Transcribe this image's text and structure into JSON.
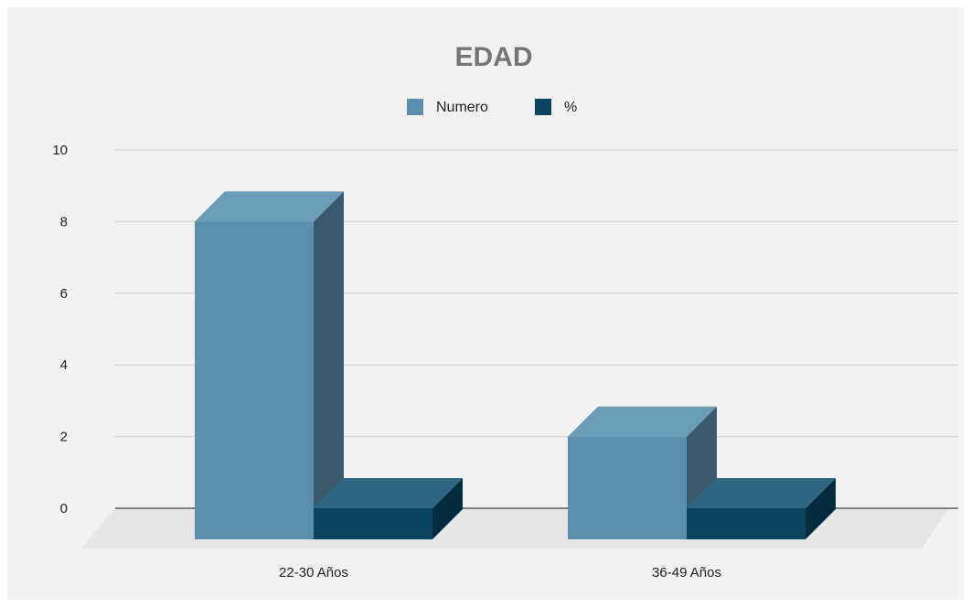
{
  "chart_data": {
    "type": "bar",
    "style": "3d-clustered",
    "title": "EDAD",
    "categories": [
      "22-30 Años",
      "36-49 Años"
    ],
    "series": [
      {
        "name": "Numero",
        "values": [
          8,
          2
        ],
        "color": "#5b8fad",
        "side_color": "#3a5a6e",
        "top_color": "#6b9cb8"
      },
      {
        "name": "%",
        "values": [
          0,
          0
        ],
        "color": "#0b4562",
        "side_color": "#062c40",
        "top_color": "#2c6683"
      }
    ],
    "y_ticks": [
      "0",
      "2",
      "4",
      "6",
      "8",
      "10"
    ],
    "ylim": [
      0,
      10
    ],
    "grid": true,
    "legend_position": "top"
  }
}
